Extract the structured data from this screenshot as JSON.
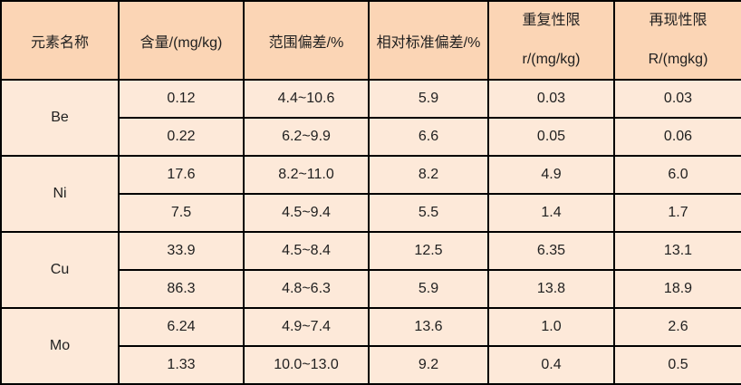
{
  "colors": {
    "header_bg": "#FBD5B5",
    "row_bg": "#FDE9D9",
    "border": "#000000",
    "text": "#1F1F1F"
  },
  "table": {
    "header": {
      "element": "元素名称",
      "content": "含量/(mg/kg)",
      "range_dev": "范围偏差/%",
      "rsd": "相对标准偏差/%",
      "repeatability_line1": "重复性限",
      "repeatability_line2": "r/(mg/kg)",
      "reproducibility_line1": "再现性限",
      "reproducibility_line2": "R/(mgkg)"
    },
    "groups": [
      {
        "element": "Be",
        "rows": [
          {
            "content": "0.12",
            "range": "4.4~10.6",
            "rsd": "5.9",
            "r": "0.03",
            "R": "0.03"
          },
          {
            "content": "0.22",
            "range": "6.2~9.9",
            "rsd": "6.6",
            "r": "0.05",
            "R": "0.06"
          }
        ]
      },
      {
        "element": "Ni",
        "rows": [
          {
            "content": "17.6",
            "range": "8.2~11.0",
            "rsd": "8.2",
            "r": "4.9",
            "R": "6.0"
          },
          {
            "content": "7.5",
            "range": "4.5~9.4",
            "rsd": "5.5",
            "r": "1.4",
            "R": "1.7"
          }
        ]
      },
      {
        "element": "Cu",
        "rows": [
          {
            "content": "33.9",
            "range": "4.5~8.4",
            "rsd": "12.5",
            "r": "6.35",
            "R": "13.1"
          },
          {
            "content": "86.3",
            "range": "4.8~6.3",
            "rsd": "5.9",
            "r": "13.8",
            "R": "18.9"
          }
        ]
      },
      {
        "element": "Mo",
        "rows": [
          {
            "content": "6.24",
            "range": "4.9~7.4",
            "rsd": "13.6",
            "r": "1.0",
            "R": "2.6"
          },
          {
            "content": "1.33",
            "range": "10.0~13.0",
            "rsd": "9.2",
            "r": "0.4",
            "R": "0.5"
          }
        ]
      }
    ]
  },
  "chart_data": {
    "type": "table",
    "columns": [
      "元素名称",
      "含量/(mg/kg)",
      "范围偏差/%",
      "相对标准偏差/%",
      "重复性限 r/(mg/kg)",
      "再现性限 R/(mgkg)"
    ],
    "rows": [
      [
        "Be",
        "0.12",
        "4.4~10.6",
        "5.9",
        "0.03",
        "0.03"
      ],
      [
        "Be",
        "0.22",
        "6.2~9.9",
        "6.6",
        "0.05",
        "0.06"
      ],
      [
        "Ni",
        "17.6",
        "8.2~11.0",
        "8.2",
        "4.9",
        "6.0"
      ],
      [
        "Ni",
        "7.5",
        "4.5~9.4",
        "5.5",
        "1.4",
        "1.7"
      ],
      [
        "Cu",
        "33.9",
        "4.5~8.4",
        "12.5",
        "6.35",
        "13.1"
      ],
      [
        "Cu",
        "86.3",
        "4.8~6.3",
        "5.9",
        "13.8",
        "18.9"
      ],
      [
        "Mo",
        "6.24",
        "4.9~7.4",
        "13.6",
        "1.0",
        "2.6"
      ],
      [
        "Mo",
        "1.33",
        "10.0~13.0",
        "9.2",
        "0.4",
        "0.5"
      ]
    ]
  }
}
